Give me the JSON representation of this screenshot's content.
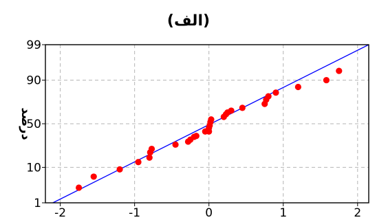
{
  "chart_data": {
    "type": "scatter",
    "title": "(الف)",
    "xlabel": "",
    "ylabel": "درصد",
    "x_ticks": [
      -2,
      -1,
      0,
      1,
      2
    ],
    "y_ticks": [
      1,
      10,
      50,
      90,
      99
    ],
    "xlim": [
      -2.2,
      2.15
    ],
    "ylim_percent": [
      1,
      99
    ],
    "y_scale": "normal-probability",
    "grid": true,
    "grid_style": "dashed",
    "point_color": "#ff0000",
    "line_color": "#0000ff",
    "fit_line": {
      "from": {
        "x": -2.1,
        "y": 1.0
      },
      "to": {
        "x": 2.15,
        "y": 99.0
      }
    },
    "points": [
      {
        "x": -1.75,
        "y": 3
      },
      {
        "x": -1.55,
        "y": 6
      },
      {
        "x": -1.2,
        "y": 9
      },
      {
        "x": -0.95,
        "y": 13
      },
      {
        "x": -0.8,
        "y": 16
      },
      {
        "x": -0.79,
        "y": 20
      },
      {
        "x": -0.77,
        "y": 23
      },
      {
        "x": -0.45,
        "y": 27
      },
      {
        "x": -0.28,
        "y": 30
      },
      {
        "x": -0.25,
        "y": 32
      },
      {
        "x": -0.2,
        "y": 35
      },
      {
        "x": -0.17,
        "y": 36
      },
      {
        "x": -0.05,
        "y": 41
      },
      {
        "x": 0.0,
        "y": 41
      },
      {
        "x": 0.0,
        "y": 45
      },
      {
        "x": 0.01,
        "y": 48
      },
      {
        "x": 0.02,
        "y": 52
      },
      {
        "x": 0.03,
        "y": 55
      },
      {
        "x": 0.2,
        "y": 58
      },
      {
        "x": 0.23,
        "y": 61
      },
      {
        "x": 0.25,
        "y": 63
      },
      {
        "x": 0.3,
        "y": 65
      },
      {
        "x": 0.45,
        "y": 68
      },
      {
        "x": 0.75,
        "y": 72
      },
      {
        "x": 0.77,
        "y": 76
      },
      {
        "x": 0.8,
        "y": 79
      },
      {
        "x": 0.9,
        "y": 82
      },
      {
        "x": 1.2,
        "y": 86
      },
      {
        "x": 1.58,
        "y": 90
      },
      {
        "x": 1.75,
        "y": 94
      }
    ]
  }
}
